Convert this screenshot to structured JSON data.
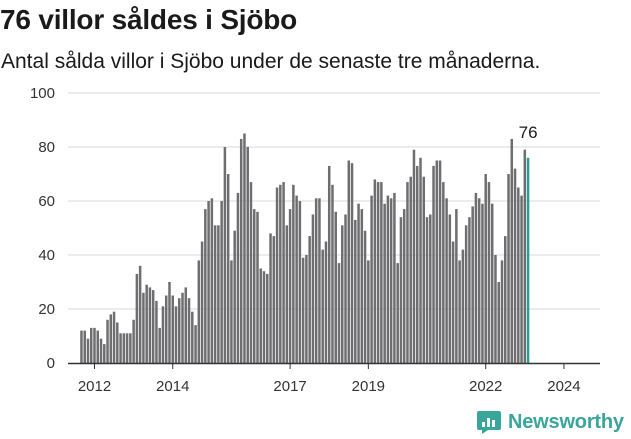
{
  "header": {
    "title": "76 villor såldes i Sjöbo",
    "subtitle": "Antal sålda villor i Sjöbo under de senaste tre månaderna."
  },
  "brand": {
    "name": "Newsworthy"
  },
  "colors": {
    "bar": "#6e6e70",
    "highlight": "#2a9d98",
    "grid": "#d9d9d9",
    "brand": "#3aa59a"
  },
  "chart_data": {
    "type": "bar",
    "title": "76 villor såldes i Sjöbo",
    "subtitle": "Antal sålda villor i Sjöbo under de senaste tre månaderna.",
    "xlabel": "",
    "ylabel": "",
    "ylim": [
      0,
      100
    ],
    "yticks": [
      0,
      20,
      40,
      60,
      80,
      100
    ],
    "x_tick_labels": [
      {
        "label": "2012",
        "year": 2012
      },
      {
        "label": "2014",
        "year": 2014
      },
      {
        "label": "2017",
        "year": 2017
      },
      {
        "label": "2019",
        "year": 2019
      },
      {
        "label": "2022",
        "year": 2022
      },
      {
        "label": "2024",
        "year": 2024
      }
    ],
    "grid": true,
    "start": "2011-09",
    "annotation": "76",
    "values": [
      12,
      12,
      9,
      13,
      13,
      12,
      9,
      7,
      16,
      18,
      19,
      15,
      11,
      11,
      11,
      11,
      16,
      33,
      36,
      26,
      29,
      28,
      27,
      23,
      13,
      21,
      25,
      30,
      25,
      21,
      24,
      26,
      28,
      24,
      19,
      14,
      38,
      45,
      57,
      60,
      61,
      51,
      51,
      60,
      80,
      70,
      38,
      49,
      63,
      83,
      85,
      80,
      67,
      57,
      56,
      35,
      34,
      33,
      48,
      47,
      65,
      66,
      67,
      51,
      57,
      66,
      62,
      60,
      39,
      40,
      47,
      55,
      61,
      61,
      42,
      45,
      73,
      66,
      56,
      37,
      51,
      55,
      75,
      74,
      53,
      59,
      57,
      49,
      38,
      62,
      68,
      67,
      67,
      59,
      62,
      61,
      63,
      37,
      54,
      57,
      67,
      69,
      79,
      73,
      76,
      69,
      54,
      55,
      73,
      75,
      75,
      67,
      61,
      55,
      45,
      57,
      38,
      42,
      51,
      54,
      58,
      63,
      61,
      59,
      70,
      67,
      59,
      40,
      30,
      38,
      47,
      70,
      83,
      72,
      65,
      62,
      79,
      76
    ]
  }
}
